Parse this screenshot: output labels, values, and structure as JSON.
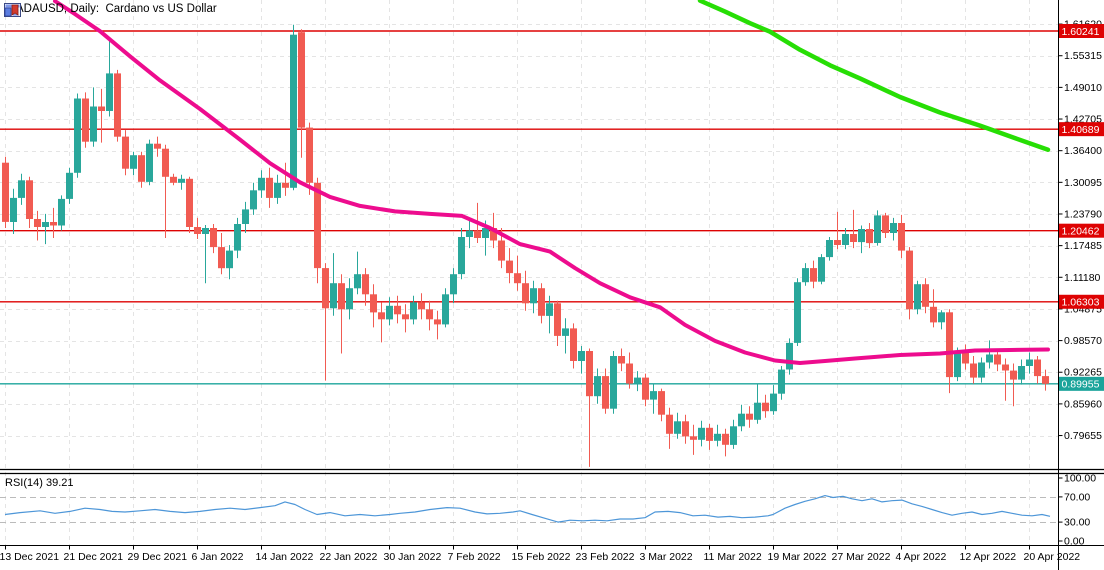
{
  "window": {
    "title": "ADAUSD, Daily:  Cardano vs US Dollar"
  },
  "colors": {
    "background": "#FFFFFF",
    "text": "#000000",
    "bullish": "#29A79B",
    "bearish": "#F15B52",
    "ma_fast_pink": "#ED0C8E",
    "ma_slow_green": "#27DE05",
    "level_line_red": "#DE0202",
    "current_price_teal": "#1BA49B",
    "rsi_line_blue": "#4D96D8",
    "grid": "#E4E4E4",
    "rsi_level_grid": "#BBBBBB",
    "separator": "#000000"
  },
  "chart_data": {
    "type": "candlestick",
    "symbol": "ADAUSD",
    "timeframe": "Daily",
    "description": "Cardano vs US Dollar",
    "y_axis": {
      "side": "right",
      "labels": [
        "1.61620",
        "1.55315",
        "1.49010",
        "1.42705",
        "1.36400",
        "1.30095",
        "1.23790",
        "1.17485",
        "1.11180",
        "1.04875",
        "0.98570",
        "0.92265",
        "0.85960",
        "0.79655"
      ]
    },
    "x_axis": {
      "labels": [
        "13 Dec 2021",
        "21 Dec 2021",
        "29 Dec 2021",
        "6 Jan 2022",
        "14 Jan 2022",
        "22 Jan 2022",
        "30 Jan 2022",
        "7 Feb 2022",
        "15 Feb 2022",
        "23 Feb 2022",
        "3 Mar 2022",
        "11 Mar 2022",
        "19 Mar 2022",
        "27 Mar 2022",
        "4 Apr 2022",
        "12 Apr 2022",
        "20 Apr 2022"
      ],
      "bars_per_tick": 8
    },
    "price_lines": [
      {
        "label": "1.60241",
        "value": 1.60241,
        "style": "level"
      },
      {
        "label": "1.40689",
        "value": 1.40689,
        "style": "level"
      },
      {
        "label": "1.20462",
        "value": 1.20462,
        "style": "level"
      },
      {
        "label": "1.06303",
        "value": 1.06303,
        "style": "level"
      },
      {
        "label": "0.89955",
        "value": 0.89955,
        "style": "current"
      }
    ],
    "candles_ohlc": [
      [
        1.34,
        1.352,
        1.21,
        1.222
      ],
      [
        1.222,
        1.288,
        1.198,
        1.27
      ],
      [
        1.27,
        1.318,
        1.256,
        1.305
      ],
      [
        1.305,
        1.312,
        1.21,
        1.228
      ],
      [
        1.228,
        1.244,
        1.185,
        1.212
      ],
      [
        1.212,
        1.238,
        1.178,
        1.222
      ],
      [
        1.222,
        1.25,
        1.19,
        1.215
      ],
      [
        1.215,
        1.275,
        1.205,
        1.268
      ],
      [
        1.268,
        1.33,
        1.258,
        1.32
      ],
      [
        1.32,
        1.478,
        1.31,
        1.468
      ],
      [
        1.468,
        1.48,
        1.37,
        1.382
      ],
      [
        1.382,
        1.49,
        1.372,
        1.452
      ],
      [
        1.452,
        1.487,
        1.38,
        1.443
      ],
      [
        1.443,
        1.585,
        1.432,
        1.518
      ],
      [
        1.518,
        1.525,
        1.382,
        1.392
      ],
      [
        1.392,
        1.405,
        1.315,
        1.328
      ],
      [
        1.328,
        1.362,
        1.315,
        1.355
      ],
      [
        1.355,
        1.362,
        1.29,
        1.302
      ],
      [
        1.302,
        1.386,
        1.295,
        1.378
      ],
      [
        1.378,
        1.392,
        1.352,
        1.368
      ],
      [
        1.368,
        1.376,
        1.19,
        1.312
      ],
      [
        1.312,
        1.318,
        1.295,
        1.3
      ],
      [
        1.3,
        1.316,
        1.286,
        1.308
      ],
      [
        1.308,
        1.312,
        1.2,
        1.212
      ],
      [
        1.212,
        1.23,
        1.188,
        1.198
      ],
      [
        1.198,
        1.216,
        1.1,
        1.21
      ],
      [
        1.21,
        1.218,
        1.16,
        1.172
      ],
      [
        1.172,
        1.2,
        1.118,
        1.13
      ],
      [
        1.13,
        1.176,
        1.108,
        1.165
      ],
      [
        1.165,
        1.23,
        1.15,
        1.218
      ],
      [
        1.218,
        1.262,
        1.2,
        1.247
      ],
      [
        1.247,
        1.3,
        1.236,
        1.285
      ],
      [
        1.285,
        1.325,
        1.27,
        1.31
      ],
      [
        1.31,
        1.33,
        1.25,
        1.27
      ],
      [
        1.27,
        1.316,
        1.258,
        1.3
      ],
      [
        1.3,
        1.34,
        1.274,
        1.29
      ],
      [
        1.29,
        1.615,
        1.285,
        1.595
      ],
      [
        1.6,
        1.606,
        1.35,
        1.41
      ],
      [
        1.41,
        1.42,
        1.276,
        1.3
      ],
      [
        1.3,
        1.31,
        1.1,
        1.13
      ],
      [
        1.13,
        1.14,
        0.906,
        1.05
      ],
      [
        1.05,
        1.16,
        1.035,
        1.1
      ],
      [
        1.1,
        1.118,
        0.96,
        1.048
      ],
      [
        1.048,
        1.11,
        1.028,
        1.09
      ],
      [
        1.09,
        1.163,
        1.078,
        1.118
      ],
      [
        1.118,
        1.13,
        1.055,
        1.078
      ],
      [
        1.078,
        1.098,
        1.012,
        1.042
      ],
      [
        1.042,
        1.062,
        0.982,
        1.028
      ],
      [
        1.028,
        1.072,
        1.016,
        1.055
      ],
      [
        1.055,
        1.075,
        1.02,
        1.038
      ],
      [
        1.038,
        1.058,
        1.002,
        1.028
      ],
      [
        1.028,
        1.075,
        1.018,
        1.062
      ],
      [
        1.062,
        1.08,
        1.028,
        1.048
      ],
      [
        1.048,
        1.065,
        1.006,
        1.028
      ],
      [
        1.028,
        1.045,
        0.988,
        1.018
      ],
      [
        1.018,
        1.09,
        1.012,
        1.078
      ],
      [
        1.078,
        1.13,
        1.06,
        1.118
      ],
      [
        1.118,
        1.21,
        1.108,
        1.192
      ],
      [
        1.192,
        1.23,
        1.17,
        1.205
      ],
      [
        1.205,
        1.26,
        1.18,
        1.19
      ],
      [
        1.19,
        1.225,
        1.155,
        1.21
      ],
      [
        1.21,
        1.24,
        1.17,
        1.185
      ],
      [
        1.185,
        1.21,
        1.13,
        1.145
      ],
      [
        1.145,
        1.17,
        1.1,
        1.12
      ],
      [
        1.12,
        1.155,
        1.085,
        1.1
      ],
      [
        1.1,
        1.125,
        1.045,
        1.06
      ],
      [
        1.06,
        1.105,
        1.04,
        1.09
      ],
      [
        1.09,
        1.1,
        1.02,
        1.035
      ],
      [
        1.035,
        1.075,
        1.0,
        1.06
      ],
      [
        1.06,
        1.065,
        0.975,
        0.995
      ],
      [
        0.995,
        1.03,
        0.96,
        1.01
      ],
      [
        1.01,
        1.02,
        0.93,
        0.945
      ],
      [
        0.945,
        0.975,
        0.92,
        0.965
      ],
      [
        0.965,
        0.97,
        0.734,
        0.875
      ],
      [
        0.875,
        0.93,
        0.86,
        0.915
      ],
      [
        0.915,
        0.93,
        0.84,
        0.85
      ],
      [
        0.85,
        0.965,
        0.84,
        0.955
      ],
      [
        0.955,
        0.97,
        0.925,
        0.94
      ],
      [
        0.94,
        0.962,
        0.89,
        0.9
      ],
      [
        0.9,
        0.925,
        0.885,
        0.912
      ],
      [
        0.912,
        0.92,
        0.855,
        0.868
      ],
      [
        0.868,
        0.9,
        0.84,
        0.885
      ],
      [
        0.885,
        0.89,
        0.825,
        0.838
      ],
      [
        0.838,
        0.852,
        0.77,
        0.8
      ],
      [
        0.8,
        0.842,
        0.79,
        0.825
      ],
      [
        0.825,
        0.838,
        0.78,
        0.795
      ],
      [
        0.795,
        0.818,
        0.758,
        0.788
      ],
      [
        0.788,
        0.826,
        0.775,
        0.812
      ],
      [
        0.812,
        0.82,
        0.768,
        0.786
      ],
      [
        0.786,
        0.818,
        0.775,
        0.8
      ],
      [
        0.8,
        0.81,
        0.755,
        0.778
      ],
      [
        0.778,
        0.828,
        0.77,
        0.815
      ],
      [
        0.815,
        0.858,
        0.805,
        0.84
      ],
      [
        0.84,
        0.855,
        0.812,
        0.828
      ],
      [
        0.828,
        0.9,
        0.82,
        0.862
      ],
      [
        0.862,
        0.878,
        0.832,
        0.845
      ],
      [
        0.845,
        0.897,
        0.838,
        0.88
      ],
      [
        0.88,
        0.935,
        0.868,
        0.928
      ],
      [
        0.928,
        0.99,
        0.918,
        0.981
      ],
      [
        0.981,
        1.11,
        0.975,
        1.102
      ],
      [
        1.102,
        1.14,
        1.095,
        1.13
      ],
      [
        1.13,
        1.145,
        1.09,
        1.103
      ],
      [
        1.103,
        1.158,
        1.098,
        1.152
      ],
      [
        1.152,
        1.192,
        1.145,
        1.186
      ],
      [
        1.186,
        1.242,
        1.168,
        1.176
      ],
      [
        1.176,
        1.21,
        1.168,
        1.198
      ],
      [
        1.198,
        1.246,
        1.17,
        1.182
      ],
      [
        1.182,
        1.215,
        1.16,
        1.208
      ],
      [
        1.208,
        1.22,
        1.17,
        1.18
      ],
      [
        1.18,
        1.245,
        1.175,
        1.235
      ],
      [
        1.235,
        1.24,
        1.19,
        1.2
      ],
      [
        1.2,
        1.23,
        1.185,
        1.22
      ],
      [
        1.22,
        1.236,
        1.15,
        1.165
      ],
      [
        1.165,
        1.172,
        1.028,
        1.048
      ],
      [
        1.048,
        1.105,
        1.038,
        1.098
      ],
      [
        1.098,
        1.11,
        1.04,
        1.053
      ],
      [
        1.053,
        1.088,
        1.012,
        1.022
      ],
      [
        1.022,
        1.046,
        1.008,
        1.042
      ],
      [
        1.042,
        1.048,
        0.881,
        0.913
      ],
      [
        0.913,
        0.972,
        0.905,
        0.962
      ],
      [
        0.962,
        0.978,
        0.928,
        0.94
      ],
      [
        0.94,
        0.955,
        0.9,
        0.912
      ],
      [
        0.912,
        0.952,
        0.902,
        0.942
      ],
      [
        0.942,
        0.986,
        0.93,
        0.958
      ],
      [
        0.958,
        0.97,
        0.925,
        0.938
      ],
      [
        0.938,
        0.95,
        0.866,
        0.926
      ],
      [
        0.926,
        0.94,
        0.855,
        0.908
      ],
      [
        0.908,
        0.948,
        0.898,
        0.935
      ],
      [
        0.935,
        0.962,
        0.92,
        0.948
      ],
      [
        0.948,
        0.955,
        0.9,
        0.915
      ],
      [
        0.915,
        0.928,
        0.886,
        0.8996
      ]
    ],
    "ma_fast_points": [
      [
        55,
        1.662
      ],
      [
        75,
        1.636
      ],
      [
        100,
        1.602
      ],
      [
        130,
        1.552
      ],
      [
        160,
        1.504
      ],
      [
        200,
        1.447
      ],
      [
        240,
        1.386
      ],
      [
        270,
        1.339
      ],
      [
        300,
        1.301
      ],
      [
        330,
        1.272
      ],
      [
        360,
        1.254
      ],
      [
        395,
        1.243
      ],
      [
        430,
        1.238
      ],
      [
        462,
        1.234
      ],
      [
        490,
        1.21
      ],
      [
        520,
        1.178
      ],
      [
        550,
        1.163
      ],
      [
        575,
        1.13
      ],
      [
        600,
        1.1
      ],
      [
        630,
        1.072
      ],
      [
        660,
        1.052
      ],
      [
        685,
        1.017
      ],
      [
        715,
        0.985
      ],
      [
        745,
        0.962
      ],
      [
        775,
        0.946
      ],
      [
        800,
        0.941
      ],
      [
        825,
        0.945
      ],
      [
        855,
        0.95
      ],
      [
        900,
        0.957
      ],
      [
        940,
        0.96
      ],
      [
        975,
        0.966
      ],
      [
        1010,
        0.967
      ],
      [
        1048,
        0.968
      ]
    ],
    "ma_slow_points": [
      [
        700,
        1.663
      ],
      [
        725,
        1.641
      ],
      [
        750,
        1.618
      ],
      [
        770,
        1.601
      ],
      [
        800,
        1.565
      ],
      [
        830,
        1.534
      ],
      [
        860,
        1.508
      ],
      [
        900,
        1.471
      ],
      [
        940,
        1.44
      ],
      [
        980,
        1.414
      ],
      [
        1015,
        1.389
      ],
      [
        1048,
        1.366
      ]
    ],
    "rsi": {
      "label": "RSI(14) 39.21",
      "period": 14,
      "current": 39.21,
      "scale_labels": [
        "100.00",
        "70.00",
        "30.00",
        "0.00"
      ],
      "scale_values": [
        100,
        70,
        30,
        0
      ],
      "level_lines": [
        70,
        30
      ],
      "points": [
        [
          5,
          42
        ],
        [
          20,
          45
        ],
        [
          40,
          48
        ],
        [
          55,
          44
        ],
        [
          70,
          47
        ],
        [
          85,
          52
        ],
        [
          100,
          50
        ],
        [
          112,
          47
        ],
        [
          125,
          46
        ],
        [
          140,
          48
        ],
        [
          155,
          50
        ],
        [
          170,
          47
        ],
        [
          185,
          45
        ],
        [
          200,
          47
        ],
        [
          215,
          50
        ],
        [
          230,
          52
        ],
        [
          245,
          50
        ],
        [
          260,
          53
        ],
        [
          275,
          56
        ],
        [
          285,
          62
        ],
        [
          295,
          58
        ],
        [
          305,
          50
        ],
        [
          317,
          42
        ],
        [
          330,
          45
        ],
        [
          345,
          40
        ],
        [
          360,
          42
        ],
        [
          375,
          40
        ],
        [
          390,
          42
        ],
        [
          400,
          44
        ],
        [
          415,
          46
        ],
        [
          430,
          50
        ],
        [
          447,
          53
        ],
        [
          460,
          52
        ],
        [
          475,
          46
        ],
        [
          487,
          43
        ],
        [
          500,
          44
        ],
        [
          513,
          46
        ],
        [
          520,
          48
        ],
        [
          532,
          42
        ],
        [
          545,
          36
        ],
        [
          558,
          30
        ],
        [
          570,
          33
        ],
        [
          583,
          32
        ],
        [
          595,
          33
        ],
        [
          607,
          32
        ],
        [
          620,
          35
        ],
        [
          633,
          35
        ],
        [
          645,
          37
        ],
        [
          655,
          46
        ],
        [
          668,
          47
        ],
        [
          680,
          45
        ],
        [
          693,
          40
        ],
        [
          705,
          41
        ],
        [
          718,
          38
        ],
        [
          730,
          39
        ],
        [
          742,
          37
        ],
        [
          755,
          38
        ],
        [
          768,
          40
        ],
        [
          773,
          42
        ],
        [
          785,
          52
        ],
        [
          795,
          58
        ],
        [
          805,
          63
        ],
        [
          815,
          67
        ],
        [
          825,
          72
        ],
        [
          833,
          69
        ],
        [
          843,
          71
        ],
        [
          852,
          67
        ],
        [
          862,
          64
        ],
        [
          872,
          67
        ],
        [
          882,
          62
        ],
        [
          892,
          64
        ],
        [
          902,
          65
        ],
        [
          912,
          59
        ],
        [
          922,
          55
        ],
        [
          932,
          50
        ],
        [
          942,
          45
        ],
        [
          952,
          41
        ],
        [
          962,
          44
        ],
        [
          972,
          46
        ],
        [
          982,
          42
        ],
        [
          992,
          44
        ],
        [
          1002,
          47
        ],
        [
          1012,
          44
        ],
        [
          1022,
          41
        ],
        [
          1032,
          40
        ],
        [
          1042,
          42
        ],
        [
          1050,
          39.2
        ]
      ]
    }
  }
}
